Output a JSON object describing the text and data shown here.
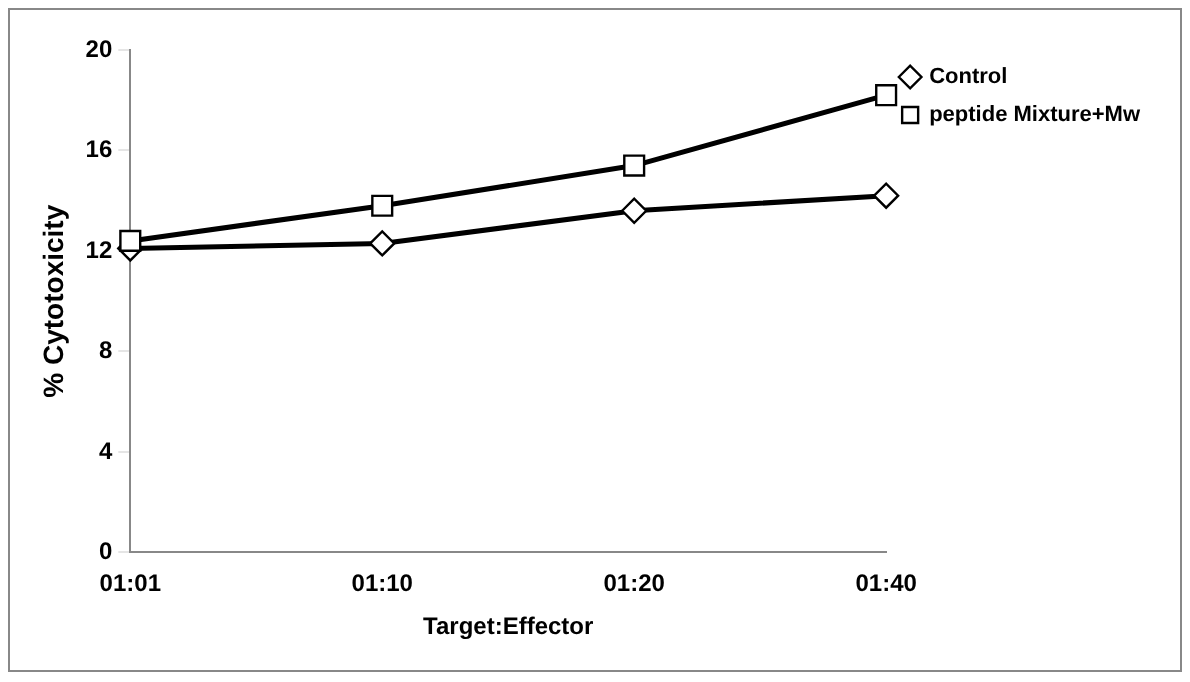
{
  "chart_data": {
    "type": "line",
    "xlabel": "Target:Effector",
    "ylabel": "% Cytotoxicity",
    "categories": [
      "01:01",
      "01:10",
      "01:20",
      "01:40"
    ],
    "series": [
      {
        "name": "Control",
        "color": "#000000",
        "marker": "diamond",
        "values": [
          12.1,
          12.3,
          13.6,
          14.2
        ]
      },
      {
        "name": "peptide Mixture+Mw",
        "color": "#000000",
        "marker": "square",
        "values": [
          12.4,
          13.8,
          15.4,
          18.2
        ]
      }
    ],
    "ylim": [
      0,
      20
    ],
    "yticks": [
      0,
      4,
      8,
      12,
      16,
      20
    ],
    "grid": false,
    "legend": "top right"
  }
}
